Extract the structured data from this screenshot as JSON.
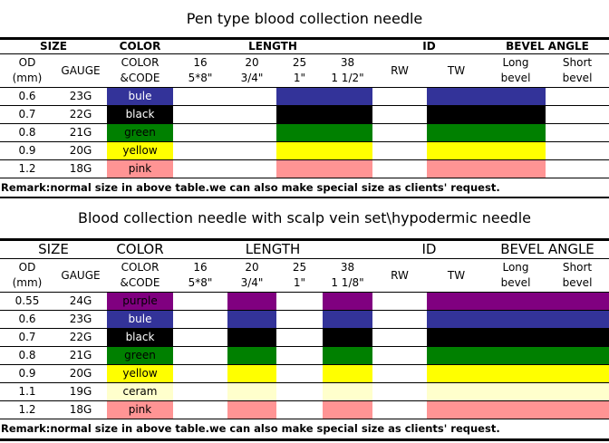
{
  "page_bg": "#ffffff",
  "swatch_colors": {
    "bule": "#333399",
    "black": "#000000",
    "green": "#008000",
    "yellow": "#ffff00",
    "pink": "#ff9494",
    "purple": "#800080",
    "ceram": "#ffffcc"
  },
  "tables": [
    {
      "title": "Pen type blood collection needle",
      "group_headers": [
        "SIZE",
        "COLOR",
        "LENGTH",
        "ID",
        "BEVEL ANGLE"
      ],
      "sub_headers": [
        [
          "OD",
          "(mm)"
        ],
        [
          "GAUGE"
        ],
        [
          "COLOR",
          "&CODE"
        ],
        [
          "16",
          "5*8\""
        ],
        [
          "20",
          "3/4\""
        ],
        [
          "25",
          "1\""
        ],
        [
          "38",
          "1 1/2\""
        ],
        [
          "RW"
        ],
        [
          "TW"
        ],
        [
          "Long",
          "bevel"
        ],
        [
          "Short",
          "bevel"
        ]
      ],
      "colored_columns": [
        6,
        7,
        9,
        10
      ],
      "rows": [
        {
          "od": "0.6",
          "gauge": "23G",
          "color_name": "bule",
          "swatch": "#333399",
          "text": "#ffffff"
        },
        {
          "od": "0.7",
          "gauge": "22G",
          "color_name": "black",
          "swatch": "#000000",
          "text": "#ffffff"
        },
        {
          "od": "0.8",
          "gauge": "21G",
          "color_name": "green",
          "swatch": "#008000",
          "text": "#000000"
        },
        {
          "od": "0.9",
          "gauge": "20G",
          "color_name": "yellow",
          "swatch": "#ffff00",
          "text": "#000000"
        },
        {
          "od": "1.2",
          "gauge": "18G",
          "color_name": "pink",
          "swatch": "#ff9494",
          "text": "#000000"
        }
      ],
      "remark": "Remark:normal size in above table.we can also make special size as clients' request."
    },
    {
      "title": "Blood collection needle with scalp vein set\\hypodermic needle",
      "group_headers": [
        "SIZE",
        "COLOR",
        "LENGTH",
        "ID",
        "BEVEL ANGLE"
      ],
      "sub_headers": [
        [
          "OD",
          "(mm)"
        ],
        [
          "GAUGE"
        ],
        [
          "COLOR",
          "&CODE"
        ],
        [
          "16",
          "5*8\""
        ],
        [
          "20",
          "3/4\""
        ],
        [
          "25",
          "1\""
        ],
        [
          "38",
          "1 1/8\""
        ],
        [
          "RW"
        ],
        [
          "TW"
        ],
        [
          "Long",
          "bevel"
        ],
        [
          "Short",
          "bevel"
        ]
      ],
      "colored_columns": [
        5,
        7,
        9,
        10,
        11
      ],
      "rows": [
        {
          "od": "0.55",
          "gauge": "24G",
          "color_name": "purple",
          "swatch": "#800080",
          "text": "#000000"
        },
        {
          "od": "0.6",
          "gauge": "23G",
          "color_name": "bule",
          "swatch": "#333399",
          "text": "#ffffff"
        },
        {
          "od": "0.7",
          "gauge": "22G",
          "color_name": "black",
          "swatch": "#000000",
          "text": "#ffffff"
        },
        {
          "od": "0.8",
          "gauge": "21G",
          "color_name": "green",
          "swatch": "#008000",
          "text": "#000000"
        },
        {
          "od": "0.9",
          "gauge": "20G",
          "color_name": "yellow",
          "swatch": "#ffff00",
          "text": "#000000"
        },
        {
          "od": "1.1",
          "gauge": "19G",
          "color_name": "ceram",
          "swatch": "#ffffcc",
          "text": "#000000"
        },
        {
          "od": "1.2",
          "gauge": "18G",
          "color_name": "pink",
          "swatch": "#ff9494",
          "text": "#000000"
        }
      ],
      "remark": "Remark:normal size in above table.we can also make special size as clients' request."
    }
  ]
}
